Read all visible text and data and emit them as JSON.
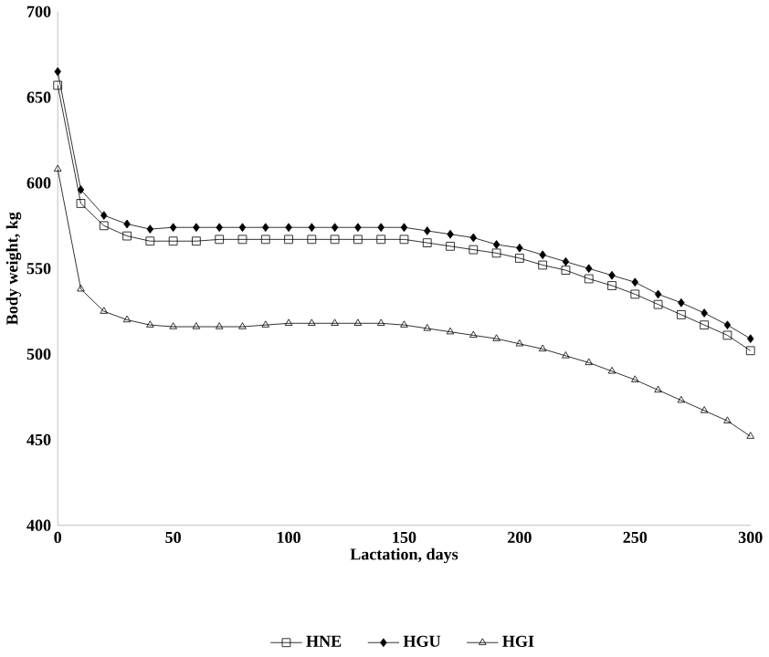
{
  "chart_data": {
    "type": "line",
    "xlabel": "Lactation, days",
    "ylabel": "Body weight, kg",
    "x": [
      0,
      10,
      20,
      30,
      40,
      50,
      60,
      70,
      80,
      90,
      100,
      110,
      120,
      130,
      140,
      150,
      160,
      170,
      180,
      190,
      200,
      210,
      220,
      230,
      240,
      250,
      260,
      270,
      280,
      290,
      300
    ],
    "series": [
      {
        "name": "HNE",
        "color": "#000000",
        "marker": "square",
        "values": [
          657,
          588,
          575,
          569,
          566,
          566,
          566,
          567,
          567,
          567,
          567,
          567,
          567,
          567,
          567,
          567,
          565,
          563,
          561,
          559,
          556,
          552,
          549,
          544,
          540,
          535,
          529,
          523,
          517,
          511,
          502
        ]
      },
      {
        "name": "HGU",
        "color": "#000000",
        "marker": "diamond",
        "values": [
          665,
          596,
          581,
          576,
          573,
          574,
          574,
          574,
          574,
          574,
          574,
          574,
          574,
          574,
          574,
          574,
          572,
          570,
          568,
          564,
          562,
          558,
          554,
          550,
          546,
          542,
          535,
          530,
          524,
          517,
          509
        ]
      },
      {
        "name": "HGI",
        "color": "#000000",
        "marker": "triangle",
        "values": [
          608,
          538,
          525,
          520,
          517,
          516,
          516,
          516,
          516,
          517,
          518,
          518,
          518,
          518,
          518,
          517,
          515,
          513,
          511,
          509,
          506,
          503,
          499,
          495,
          490,
          485,
          479,
          473,
          467,
          461,
          452
        ]
      }
    ],
    "xlim": [
      0,
      300
    ],
    "ylim": [
      400,
      700
    ],
    "xticks": [
      0,
      50,
      100,
      150,
      200,
      250,
      300
    ],
    "yticks": [
      400,
      450,
      500,
      550,
      600,
      650,
      700
    ],
    "grid": false,
    "legend": "bottom",
    "line_style": "solid"
  }
}
